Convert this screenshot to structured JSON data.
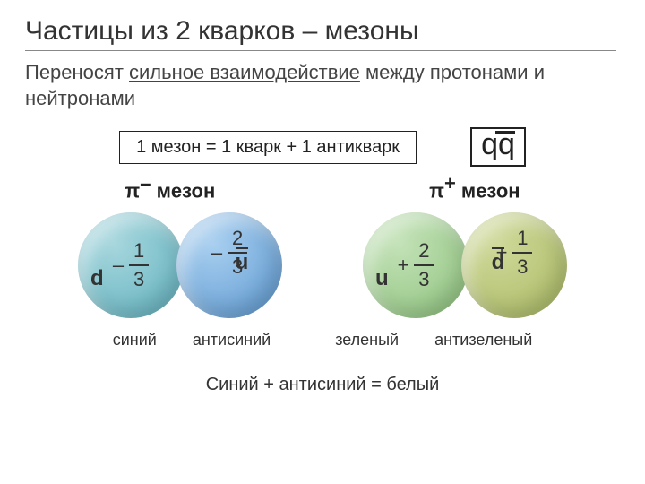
{
  "title": "Частицы из 2 кварков – мезоны",
  "subtitle_pre": "Переносят ",
  "subtitle_ul": "сильное взаимодействие",
  "subtitle_post": " между протонами и нейтронами",
  "formula": "1 мезон = 1 кварк + 1 антикварк",
  "qq": "qq",
  "pi_minus": {
    "symbol": "π",
    "sign": "–",
    "word": " мезон"
  },
  "pi_plus": {
    "symbol": "π",
    "sign": "+",
    "word": " мезон"
  },
  "circles": {
    "q1": {
      "sign": "–",
      "num": "1",
      "den": "3",
      "letter": "d",
      "overbar": false,
      "bg": "radial-gradient(circle at 35% 30%, #a6d6dd, #5eb0bd)"
    },
    "q2": {
      "sign": "–",
      "num": "2",
      "den": "3",
      "letter": "u",
      "overbar": true,
      "bg": "radial-gradient(circle at 35% 30%, #a8cff0, #5a96ce)"
    },
    "q3": {
      "sign": "+",
      "num": "2",
      "den": "3",
      "letter": "u",
      "overbar": false,
      "bg": "radial-gradient(circle at 35% 30%, #c3e2b7, #8bc17a)"
    },
    "q4": {
      "sign": "+",
      "num": "1",
      "den": "3",
      "letter": "d",
      "overbar": true,
      "bg": "radial-gradient(circle at 35% 30%, #cfd999, #a8b861)"
    }
  },
  "color_labels": {
    "c1": "синий",
    "c2": "антисиний",
    "c3": "зеленый",
    "c4": "антизеленый"
  },
  "bottom": "Синий + антисиний = белый"
}
